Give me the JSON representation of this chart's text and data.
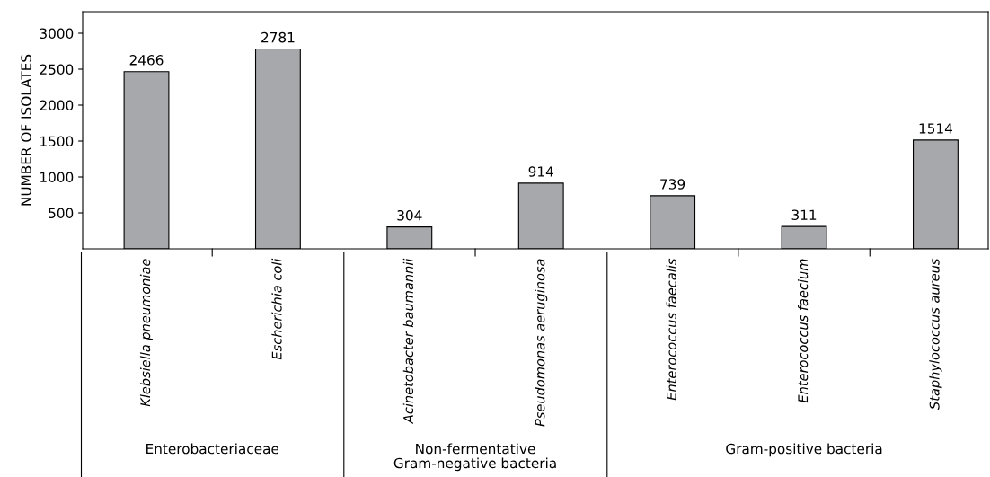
{
  "chart_data": {
    "type": "bar",
    "ylabel": "NUMBER OF ISOLATES",
    "categories": [
      "Klebsiella pneumoniae",
      "Escherichia coli",
      "Acinetobacter baumannii",
      "Pseudomonas aeruginosa",
      "Enterococcus faecalis",
      "Enterococcus faecium",
      "Staphylococcus aureus"
    ],
    "values": [
      2466,
      2781,
      304,
      914,
      739,
      311,
      1514
    ],
    "color": "#a7a8ab",
    "ylim": [
      0,
      3300
    ],
    "yticks": [
      500,
      1000,
      1500,
      2000,
      2500,
      3000
    ],
    "data_labels": true,
    "grid": false,
    "annotations": [
      "Enterobacteriaceae",
      "Non-fermentative\nGram-negative bacteria",
      "Gram-positive bacteria"
    ]
  }
}
